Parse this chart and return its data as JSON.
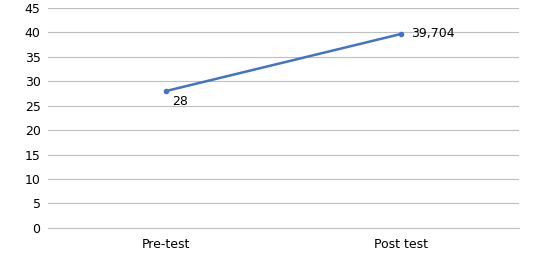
{
  "x_labels": [
    "Pre-test",
    "Post test"
  ],
  "x_values": [
    1,
    3
  ],
  "y_values": [
    28,
    39.704
  ],
  "annotations": [
    "28",
    "39,704"
  ],
  "line_color": "#4472C4",
  "line_width": 1.8,
  "marker": "o",
  "marker_size": 3,
  "xlim": [
    0,
    4
  ],
  "ylim": [
    0,
    45
  ],
  "yticks": [
    0,
    5,
    10,
    15,
    20,
    25,
    30,
    35,
    40,
    45
  ],
  "background_color": "#ffffff",
  "grid_color": "#bfbfbf",
  "spine_color": "#bfbfbf",
  "font_size": 9,
  "annotation_font_size": 9
}
